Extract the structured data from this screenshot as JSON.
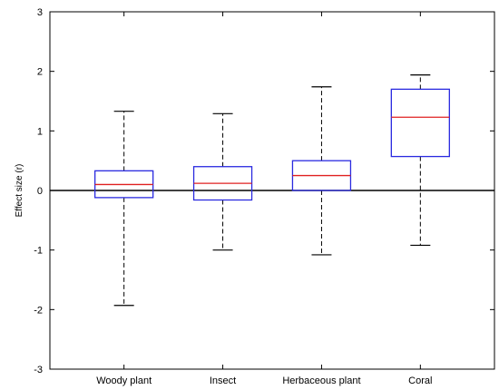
{
  "chart_data": {
    "type": "boxplot",
    "title": "",
    "xlabel": "",
    "ylabel": "Effect size (r)",
    "ylim": [
      -3,
      3
    ],
    "yticks": [
      -3,
      -2,
      -1,
      0,
      1,
      2,
      3
    ],
    "ytick_labels": [
      "-3",
      "-2",
      "-1",
      "0",
      "1",
      "2",
      "3"
    ],
    "categories": [
      "Woody plant",
      "Insect",
      "Herbaceous plant",
      "Coral"
    ],
    "boxes": [
      {
        "whisker_low": -1.93,
        "q1": -0.12,
        "median": 0.1,
        "q3": 0.33,
        "whisker_high": 1.33
      },
      {
        "whisker_low": -1.0,
        "q1": -0.16,
        "median": 0.12,
        "q3": 0.4,
        "whisker_high": 1.29
      },
      {
        "whisker_low": -1.08,
        "q1": 0.0,
        "median": 0.25,
        "q3": 0.5,
        "whisker_high": 1.74
      },
      {
        "whisker_low": -0.92,
        "q1": 0.57,
        "median": 1.23,
        "q3": 1.7,
        "whisker_high": 1.94
      }
    ],
    "reference_line": 0,
    "grid": false,
    "colors": {
      "box": "#2a2ae0",
      "median": "#e02020",
      "whisker": "#000000",
      "axes": "#000000"
    }
  }
}
